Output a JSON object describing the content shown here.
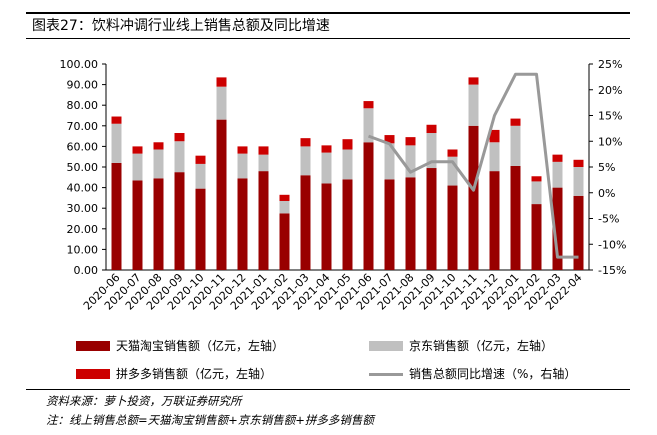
{
  "title": "图表27：饮料冲调行业线上销售总额及同比增速",
  "chart_data": {
    "type": "bar",
    "stacked": true,
    "categories": [
      "2020-06",
      "2020-07",
      "2020-08",
      "2020-09",
      "2020-10",
      "2020-11",
      "2020-12",
      "2021-01",
      "2021-02",
      "2021-03",
      "2021-04",
      "2021-05",
      "2021-06",
      "2021-07",
      "2021-08",
      "2021-09",
      "2021-10",
      "2021-11",
      "2021-12",
      "2022-01",
      "2022-02",
      "2022-03",
      "2022-04"
    ],
    "series": [
      {
        "name": "天猫淘宝销售额（亿元，左轴）",
        "axis": "left",
        "color": "#990000",
        "values": [
          52,
          43.5,
          44.5,
          47.5,
          39.5,
          73,
          44.5,
          48,
          27.5,
          46,
          42,
          44,
          62,
          44,
          45,
          49.5,
          41,
          70,
          48,
          50.5,
          32,
          40,
          36
        ]
      },
      {
        "name": "京东销售额（亿元，左轴）",
        "axis": "left",
        "color": "#c0c0c0",
        "values": [
          19,
          13,
          14,
          15,
          12,
          16,
          12,
          8,
          6,
          14,
          15,
          14.5,
          16.5,
          17.5,
          15.5,
          17,
          14,
          20,
          14,
          19.5,
          11,
          12.5,
          14
        ]
      },
      {
        "name": "拼多多销售额（亿元，左轴）",
        "axis": "left",
        "color": "#cc0000",
        "values": [
          3.5,
          3.5,
          3.5,
          4,
          4,
          4.5,
          3.5,
          4,
          3,
          4,
          3.5,
          5,
          3.5,
          4,
          4,
          4,
          3.5,
          3.5,
          6,
          3.5,
          2.5,
          3.5,
          3.5
        ]
      },
      {
        "name": "销售总额同比增速（%，右轴）",
        "axis": "right",
        "type": "line",
        "color": "#999999",
        "values": [
          null,
          null,
          null,
          null,
          null,
          null,
          null,
          null,
          null,
          null,
          null,
          null,
          11,
          9.5,
          4,
          6,
          6,
          0.5,
          15,
          23,
          23,
          -12.5,
          -12.5
        ]
      }
    ],
    "y_left": {
      "min": 0,
      "max": 100,
      "step": 10,
      "ticks": [
        "0.00",
        "10.00",
        "20.00",
        "30.00",
        "40.00",
        "50.00",
        "60.00",
        "70.00",
        "80.00",
        "90.00",
        "100.00"
      ]
    },
    "y_right": {
      "min": -15,
      "max": 25,
      "step": 5,
      "ticks": [
        "-15%",
        "-10%",
        "-5%",
        "0%",
        "5%",
        "10%",
        "15%",
        "20%",
        "25%"
      ]
    },
    "grid": false,
    "legend_position": "bottom"
  },
  "footer": {
    "source": "资料来源：萝卜投资，万联证券研究所",
    "note": "注：线上销售总额=天猫淘宝销售额+京东销售额+拼多多销售额"
  }
}
